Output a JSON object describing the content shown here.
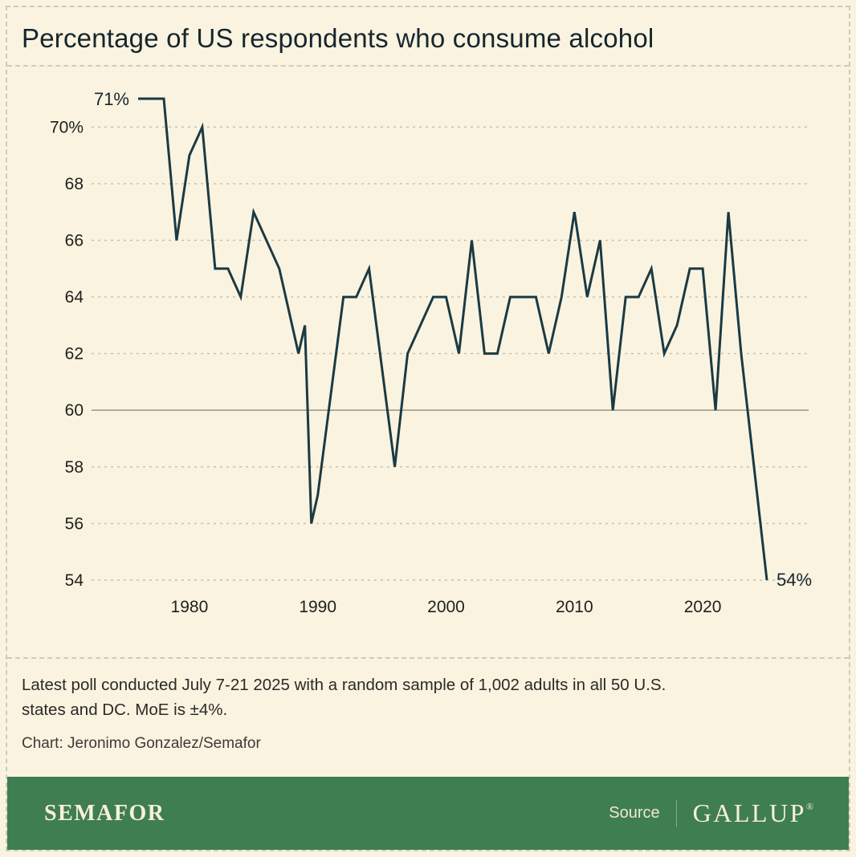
{
  "title": "Percentage of US respondents who consume alcohol",
  "chart_data": {
    "type": "line",
    "title": "Percentage of US respondents who consume alcohol",
    "xlabel": "",
    "ylabel": "",
    "series_name": "% of US respondents who consume alcohol",
    "points": [
      [
        1976,
        71
      ],
      [
        1978,
        71
      ],
      [
        1979,
        66
      ],
      [
        1980,
        69
      ],
      [
        1981,
        70
      ],
      [
        1982,
        65
      ],
      [
        1983,
        65
      ],
      [
        1984,
        64
      ],
      [
        1985,
        67
      ],
      [
        1986,
        66
      ],
      [
        1987,
        65
      ],
      [
        1988,
        63
      ],
      [
        1988.5,
        62
      ],
      [
        1989,
        63
      ],
      [
        1989.5,
        56
      ],
      [
        1990,
        57
      ],
      [
        1992,
        64
      ],
      [
        1993,
        64
      ],
      [
        1994,
        65
      ],
      [
        1996,
        58
      ],
      [
        1997,
        62
      ],
      [
        1999,
        64
      ],
      [
        2000,
        64
      ],
      [
        2001,
        62
      ],
      [
        2002,
        66
      ],
      [
        2003,
        62
      ],
      [
        2004,
        62
      ],
      [
        2005,
        64
      ],
      [
        2007,
        64
      ],
      [
        2008,
        62
      ],
      [
        2009,
        64
      ],
      [
        2010,
        67
      ],
      [
        2011,
        64
      ],
      [
        2012,
        66
      ],
      [
        2013,
        60
      ],
      [
        2014,
        64
      ],
      [
        2015,
        64
      ],
      [
        2016,
        65
      ],
      [
        2017,
        62
      ],
      [
        2018,
        63
      ],
      [
        2019,
        65
      ],
      [
        2020,
        65
      ],
      [
        2021,
        60
      ],
      [
        2022,
        67
      ],
      [
        2023,
        62
      ],
      [
        2024,
        58
      ],
      [
        2025,
        54
      ]
    ],
    "xlim": [
      1976,
      2025
    ],
    "ylim": [
      54,
      71
    ],
    "xticks": [
      1980,
      1990,
      2000,
      2010,
      2020
    ],
    "yticks": [
      54,
      56,
      58,
      60,
      62,
      64,
      66,
      68,
      70
    ],
    "ytick_labels": [
      "54",
      "56",
      "58",
      "60",
      "62",
      "64",
      "66",
      "68",
      "70%"
    ],
    "grid": "horizontal-dashed",
    "solid_gridline_at": 60,
    "line_color": "#1b3a43",
    "start_label": "71%",
    "end_label": "54%",
    "legend": "none"
  },
  "notes": {
    "lines": [
      "Latest poll conducted July 7-21 2025 with a random sample of 1,002 adults in all 50 U.S.",
      "states and DC. MoE is ±4%."
    ],
    "credit": "Chart: Jeronimo Gonzalez/Semafor"
  },
  "footer": {
    "brand": "SEMAFOR",
    "source_label": "Source",
    "source_name": "GALLUP",
    "registered_mark": "®",
    "bar_color": "#3f7e51"
  },
  "colors": {
    "background": "#faf3e0",
    "line": "#1b3a43",
    "footer_green": "#3f7e51",
    "grid_dashed": "#c4bfae",
    "grid_solid": "#8f8c82",
    "text": "#15262d",
    "frame_dash": "#cfcbbc"
  }
}
